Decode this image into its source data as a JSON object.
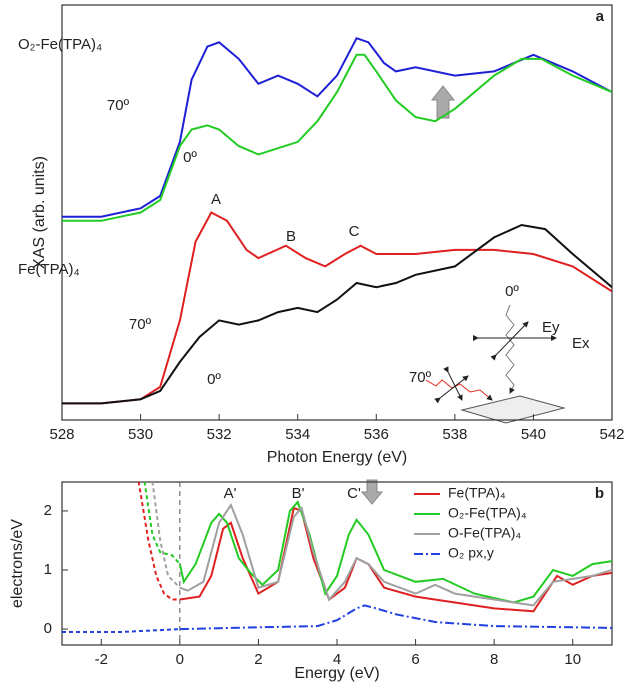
{
  "chart_data": [
    {
      "type": "line",
      "panel_label": "a",
      "xlabel": "Photon Energy (eV)",
      "ylabel": "XAS (arb. units)",
      "xlim": [
        528,
        542
      ],
      "xticks": [
        528,
        530,
        532,
        534,
        536,
        538,
        540,
        542
      ],
      "ylim": [
        0,
        100
      ],
      "annotations": [
        "O₂-Fe(TPA)₄",
        "70º",
        "0º",
        "A",
        "B",
        "C",
        "Fe(TPA)₄",
        "70º",
        "0º",
        "0º",
        "Ey",
        "Ex",
        "70º"
      ],
      "series": [
        {
          "color": "#1f1fd6",
          "x": [
            528,
            529,
            530,
            530.5,
            531,
            531.3,
            531.7,
            532,
            532.5,
            533,
            533.5,
            534,
            534.5,
            535,
            535.5,
            535.8,
            536.2,
            536.5,
            537,
            538,
            539,
            539.5,
            540,
            541,
            542
          ],
          "values": [
            49,
            49,
            51,
            54,
            67,
            82,
            90,
            91,
            87,
            81,
            83,
            81,
            78,
            83,
            92,
            91,
            86,
            84,
            85,
            83,
            84,
            86,
            88,
            84,
            79
          ]
        },
        {
          "color": "#22cc22",
          "x": [
            528,
            529,
            530,
            530.5,
            531,
            531.3,
            531.7,
            532,
            532.5,
            533,
            534,
            534.5,
            535,
            535.5,
            535.7,
            536,
            536.5,
            537,
            537.5,
            538,
            539,
            539.7,
            540.2,
            541,
            542
          ],
          "values": [
            48,
            48,
            50,
            53,
            66,
            70,
            71,
            70,
            66,
            64,
            67,
            72,
            79,
            88,
            88,
            84,
            77,
            73,
            72,
            75,
            83,
            87,
            87,
            83,
            79
          ]
        },
        {
          "color": "#e02020",
          "x": [
            528,
            529,
            530,
            530.5,
            531,
            531.4,
            531.8,
            532.2,
            532.7,
            533,
            533.7,
            534.2,
            534.7,
            535.2,
            535.6,
            536,
            536.5,
            537,
            538,
            539,
            540,
            541,
            542
          ],
          "values": [
            4,
            4,
            5,
            8,
            24,
            43,
            50,
            48,
            41,
            39,
            42,
            39,
            37,
            40,
            42,
            40,
            40,
            40,
            41,
            41,
            40,
            37,
            31
          ]
        },
        {
          "color": "#111111",
          "x": [
            528,
            529,
            530,
            530.5,
            531,
            531.5,
            532,
            532.5,
            533,
            533.5,
            534,
            534.5,
            535,
            535.5,
            536,
            536.5,
            537,
            538,
            539,
            539.7,
            540.3,
            541,
            542
          ],
          "values": [
            4,
            4,
            5,
            7,
            14,
            20,
            24,
            23,
            24,
            26,
            27,
            26,
            29,
            33,
            32,
            33,
            35,
            37,
            44,
            47,
            46,
            40,
            32
          ]
        }
      ]
    },
    {
      "type": "line",
      "panel_label": "b",
      "xlabel": "Energy (eV)",
      "ylabel": "electrons/eV",
      "xlim": [
        -3,
        11
      ],
      "xticks": [
        -2,
        0,
        2,
        4,
        6,
        8,
        10
      ],
      "ylim": [
        -0.27,
        2.49
      ],
      "yticks": [
        0,
        1,
        2
      ],
      "dash_negative_x": true,
      "vline": 0,
      "legend": "upper right",
      "annotations": [
        "A'",
        "B'",
        "C'"
      ],
      "series": [
        {
          "name": "Fe(TPA)₄",
          "color": "#e02020",
          "style": "solid",
          "x": [
            -1.05,
            -0.8,
            -0.6,
            -0.4,
            -0.2,
            0,
            0.5,
            0.8,
            1.1,
            1.3,
            1.6,
            2.0,
            2.5,
            2.9,
            3.1,
            3.4,
            3.8,
            4.2,
            4.5,
            4.8,
            5.2,
            6,
            7,
            8,
            9,
            9.6,
            10,
            10.5,
            11
          ],
          "values": [
            2.5,
            1.5,
            0.9,
            0.6,
            0.5,
            0.5,
            0.55,
            0.9,
            1.7,
            1.8,
            1.2,
            0.6,
            0.8,
            2.05,
            2.0,
            1.2,
            0.5,
            0.7,
            1.2,
            1.1,
            0.7,
            0.55,
            0.45,
            0.35,
            0.3,
            0.9,
            0.75,
            0.9,
            0.95
          ]
        },
        {
          "name": "O₂-Fe(TPA)₄",
          "color": "#22cc22",
          "style": "solid",
          "x": [
            -0.9,
            -0.7,
            -0.5,
            -0.2,
            0,
            0.1,
            0.4,
            0.8,
            1.0,
            1.2,
            1.5,
            1.8,
            2.1,
            2.5,
            2.8,
            3.0,
            3.3,
            3.7,
            4.0,
            4.3,
            4.5,
            4.8,
            5.2,
            6.0,
            6.7,
            7.5,
            8.5,
            9.0,
            9.5,
            10.0,
            10.5,
            11
          ],
          "values": [
            2.5,
            1.6,
            1.3,
            1.25,
            1.1,
            0.8,
            1.1,
            1.8,
            1.95,
            1.8,
            1.2,
            0.95,
            0.75,
            1.0,
            2.0,
            2.15,
            1.6,
            0.6,
            0.9,
            1.6,
            1.85,
            1.6,
            1.0,
            0.8,
            0.85,
            0.6,
            0.45,
            0.55,
            1.0,
            0.9,
            1.1,
            1.15
          ]
        },
        {
          "name": "O-Fe(TPA)₄",
          "color": "#a0a0a0",
          "style": "solid",
          "x": [
            -0.7,
            -0.5,
            -0.3,
            0,
            0.2,
            0.6,
            1.0,
            1.3,
            1.6,
            2.0,
            2.5,
            2.9,
            3.1,
            3.4,
            3.8,
            4.2,
            4.5,
            4.8,
            5.2,
            6.0,
            6.5,
            7.0,
            8.0,
            9.0,
            9.5,
            10,
            10.5,
            11
          ],
          "values": [
            2.5,
            1.5,
            0.9,
            0.7,
            0.65,
            0.8,
            1.8,
            2.1,
            1.6,
            0.7,
            0.8,
            1.9,
            2.05,
            1.3,
            0.5,
            0.8,
            1.2,
            1.1,
            0.8,
            0.6,
            0.75,
            0.6,
            0.5,
            0.4,
            0.8,
            0.85,
            0.9,
            1.0
          ]
        },
        {
          "name": "O₂ px,y",
          "color": "#2040e0",
          "style": "dashdot",
          "x": [
            -3,
            -1.5,
            0,
            2,
            3.5,
            4.0,
            4.5,
            4.7,
            5.0,
            5.5,
            6.5,
            8,
            11
          ],
          "values": [
            -0.05,
            -0.05,
            0,
            0.03,
            0.05,
            0.15,
            0.35,
            0.4,
            0.35,
            0.25,
            0.12,
            0.05,
            0.02
          ]
        }
      ]
    }
  ]
}
